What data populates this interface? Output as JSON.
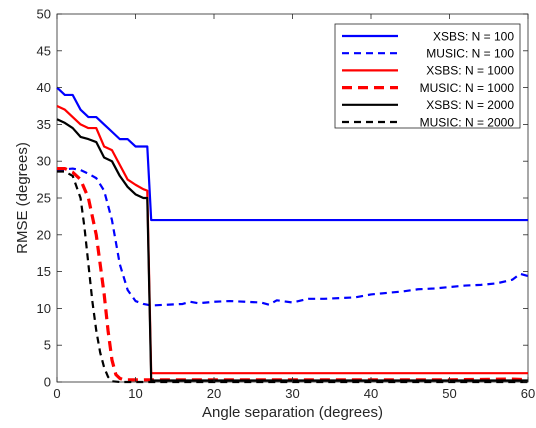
{
  "chart_data": {
    "type": "line",
    "xlabel": "Angle separation (degrees)",
    "ylabel": "RMSE (degrees)",
    "xlim": [
      0,
      60
    ],
    "ylim": [
      0,
      50
    ],
    "xticks": [
      0,
      10,
      20,
      30,
      40,
      50,
      60
    ],
    "yticks": [
      0,
      5,
      10,
      15,
      20,
      25,
      30,
      35,
      40,
      45,
      50
    ],
    "grid": false,
    "legend_position": "top-right",
    "series": [
      {
        "name": "XSBS: N = 100",
        "color": "#0000ff",
        "style": "solid",
        "x": [
          0,
          1,
          2,
          3,
          4,
          5,
          6,
          7,
          8,
          9,
          10,
          11,
          11.5,
          12,
          60
        ],
        "y": [
          40,
          39,
          39,
          37,
          36,
          36,
          35,
          34,
          33,
          33,
          32,
          32,
          32,
          22,
          22
        ]
      },
      {
        "name": "MUSIC: N = 100",
        "color": "#0000ff",
        "style": "dashed",
        "x": [
          0,
          1,
          2,
          3,
          4,
          5,
          6,
          7,
          8,
          9,
          10,
          11,
          12,
          14,
          16,
          17,
          18,
          20,
          22,
          24,
          26,
          27,
          28,
          30,
          32,
          34,
          36,
          38,
          40,
          42,
          44,
          46,
          48,
          50,
          52,
          54,
          56,
          58,
          59,
          60
        ],
        "y": [
          28.8,
          28.9,
          29,
          28.8,
          28.3,
          27.7,
          26,
          22,
          16,
          12.5,
          11,
          10.6,
          10.4,
          10.5,
          10.6,
          10.9,
          10.7,
          10.9,
          11,
          10.9,
          10.8,
          10.5,
          11.1,
          10.8,
          11.3,
          11.3,
          11.4,
          11.5,
          11.9,
          12.1,
          12.3,
          12.6,
          12.7,
          12.9,
          13.1,
          13.2,
          13.4,
          13.9,
          14.7,
          14.4
        ]
      },
      {
        "name": "XSBS: N = 1000",
        "color": "#ff0000",
        "style": "solid",
        "x": [
          0,
          1,
          2,
          3,
          4,
          5,
          6,
          7,
          8,
          9,
          10,
          11,
          11.5,
          12,
          60
        ],
        "y": [
          37.5,
          37,
          36,
          35,
          34.5,
          34.5,
          32,
          31.5,
          29.5,
          27.5,
          26.8,
          26.2,
          26,
          1.2,
          1.2
        ]
      },
      {
        "name": "MUSIC: N = 1000",
        "color": "#ff0000",
        "style": "dashed-thick",
        "x": [
          0,
          1,
          2,
          3,
          4,
          5,
          6,
          6.5,
          7,
          7.5,
          8,
          8.5,
          9,
          10,
          20,
          30,
          40,
          50,
          58,
          60
        ],
        "y": [
          29,
          29,
          28.5,
          27.5,
          25,
          20,
          12,
          7,
          3,
          1,
          0.5,
          0.3,
          0.3,
          0.3,
          0.3,
          0.3,
          0.3,
          0.3,
          0.4,
          0.3
        ]
      },
      {
        "name": "XSBS: N = 2000",
        "color": "#000000",
        "style": "solid",
        "x": [
          0,
          1,
          2,
          3,
          4,
          5,
          6,
          7,
          8,
          9,
          10,
          11,
          11.5,
          12,
          60
        ],
        "y": [
          35.7,
          35.2,
          34.5,
          33.3,
          33,
          32.6,
          30.5,
          30,
          28,
          26.5,
          25.5,
          25,
          25,
          0.2,
          0.2
        ]
      },
      {
        "name": "MUSIC: N = 2000",
        "color": "#000000",
        "style": "dashed",
        "x": [
          0,
          1,
          2,
          3,
          3.5,
          4,
          4.5,
          5,
          5.5,
          6,
          6.5,
          7,
          8,
          60
        ],
        "y": [
          28.6,
          28.6,
          28,
          25,
          21,
          16,
          11,
          7,
          4,
          2,
          0.7,
          0.1,
          0,
          0
        ]
      }
    ]
  }
}
